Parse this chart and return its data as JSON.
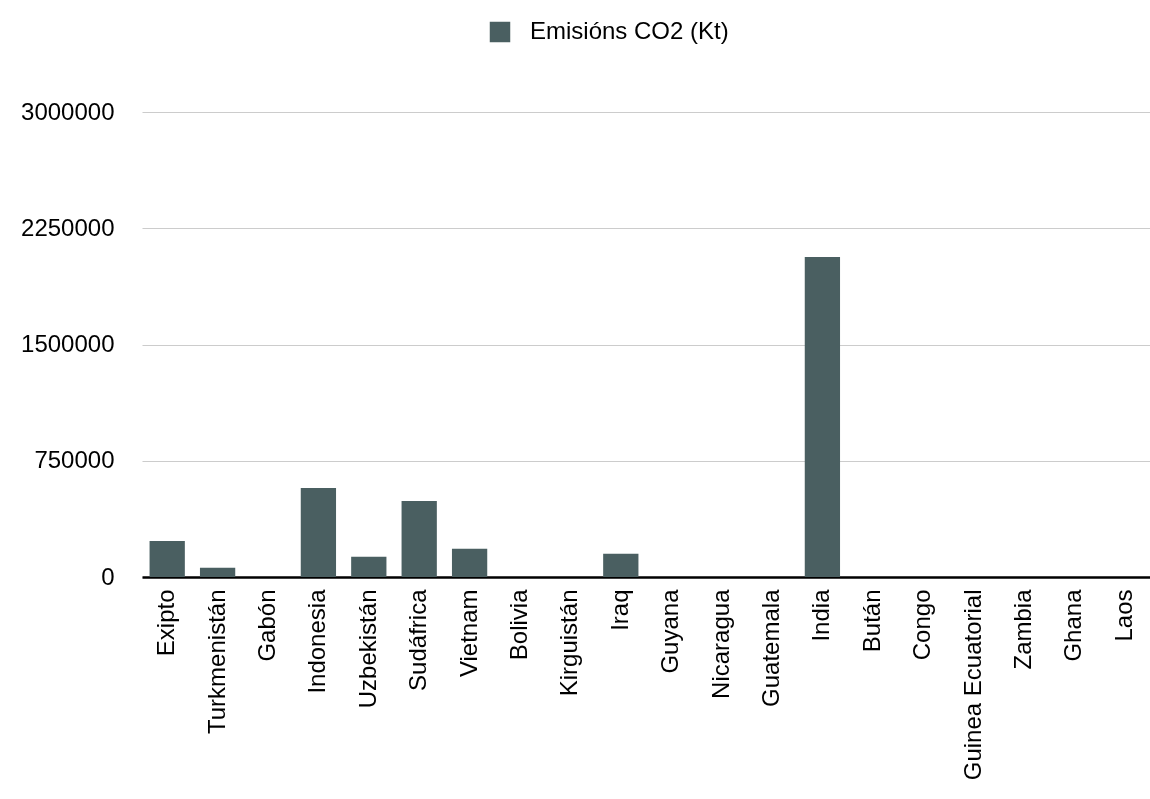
{
  "chart_data": {
    "type": "bar",
    "categories": [
      "Exipto",
      "Turkmenistán",
      "Gabón",
      "Indonesia",
      "Uzbekistán",
      "Sudáfrica",
      "Vietnam",
      "Bolivia",
      "Kirguistán",
      "Iraq",
      "Guyana",
      "Nicaragua",
      "Guatemala",
      "India",
      "Bután",
      "Congo",
      "Guinea Ecuatorial",
      "Zambia",
      "Ghana",
      "Laos"
    ],
    "series": [
      {
        "name": "Emisións CO2 (Kt)",
        "color": "#4a5f61",
        "values": [
          232000,
          60000,
          0,
          575000,
          131000,
          490000,
          182000,
          0,
          0,
          150000,
          0,
          0,
          0,
          2065000,
          0,
          0,
          0,
          0,
          0,
          0
        ]
      }
    ],
    "ylim": [
      0,
      3000000
    ],
    "yticks": [
      0,
      750000,
      1500000,
      2250000,
      3000000
    ],
    "grid": "y",
    "legend": "top"
  }
}
